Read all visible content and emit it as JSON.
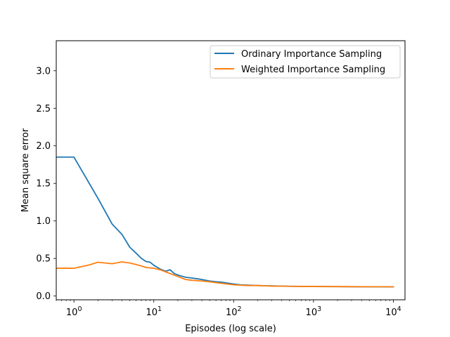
{
  "chart_data": {
    "type": "line",
    "title": "",
    "xlabel": "Episodes (log scale)",
    "ylabel": "Mean square error",
    "xscale": "log",
    "xlim": [
      0.6,
      14000
    ],
    "ylim": [
      -0.05,
      3.4
    ],
    "xticks": [
      1,
      10,
      100,
      1000,
      10000
    ],
    "xtick_labels": [
      {
        "base": "10",
        "exp": "0"
      },
      {
        "base": "10",
        "exp": "1"
      },
      {
        "base": "10",
        "exp": "2"
      },
      {
        "base": "10",
        "exp": "3"
      },
      {
        "base": "10",
        "exp": "4"
      }
    ],
    "yticks": [
      0.0,
      0.5,
      1.0,
      1.5,
      2.0,
      2.5,
      3.0
    ],
    "ytick_labels": [
      "0.0",
      "0.5",
      "1.0",
      "1.5",
      "2.0",
      "2.5",
      "3.0"
    ],
    "grid": false,
    "legend_position": "upper right",
    "series": [
      {
        "name": "Ordinary Importance Sampling",
        "color": "#1f77b4",
        "points": [
          [
            0.6,
            1.85
          ],
          [
            1,
            1.85
          ],
          [
            2,
            1.3
          ],
          [
            3,
            0.96
          ],
          [
            4,
            0.82
          ],
          [
            5,
            0.65
          ],
          [
            6,
            0.57
          ],
          [
            7,
            0.5
          ],
          [
            8,
            0.46
          ],
          [
            9,
            0.45
          ],
          [
            10,
            0.41
          ],
          [
            12,
            0.36
          ],
          [
            14,
            0.33
          ],
          [
            16,
            0.35
          ],
          [
            18,
            0.3
          ],
          [
            20,
            0.28
          ],
          [
            25,
            0.25
          ],
          [
            30,
            0.24
          ],
          [
            35,
            0.23
          ],
          [
            40,
            0.22
          ],
          [
            50,
            0.2
          ],
          [
            60,
            0.19
          ],
          [
            70,
            0.185
          ],
          [
            80,
            0.175
          ],
          [
            100,
            0.16
          ],
          [
            120,
            0.15
          ],
          [
            150,
            0.145
          ],
          [
            200,
            0.14
          ],
          [
            300,
            0.135
          ],
          [
            500,
            0.13
          ],
          [
            700,
            0.128
          ],
          [
            1000,
            0.127
          ],
          [
            2000,
            0.125
          ],
          [
            5000,
            0.123
          ],
          [
            10000,
            0.122
          ]
        ]
      },
      {
        "name": "Weighted Importance Sampling",
        "color": "#ff7f0e",
        "points": [
          [
            0.6,
            0.37
          ],
          [
            1,
            0.37
          ],
          [
            1.5,
            0.41
          ],
          [
            2,
            0.45
          ],
          [
            3,
            0.43
          ],
          [
            4,
            0.455
          ],
          [
            5,
            0.44
          ],
          [
            6,
            0.42
          ],
          [
            7,
            0.4
          ],
          [
            8,
            0.38
          ],
          [
            10,
            0.37
          ],
          [
            12,
            0.35
          ],
          [
            15,
            0.31
          ],
          [
            20,
            0.26
          ],
          [
            25,
            0.22
          ],
          [
            30,
            0.21
          ],
          [
            40,
            0.2
          ],
          [
            50,
            0.19
          ],
          [
            70,
            0.17
          ],
          [
            100,
            0.15
          ],
          [
            150,
            0.14
          ],
          [
            200,
            0.14
          ],
          [
            300,
            0.133
          ],
          [
            500,
            0.13
          ],
          [
            700,
            0.128
          ],
          [
            1000,
            0.127
          ],
          [
            2000,
            0.126
          ],
          [
            5000,
            0.124
          ],
          [
            10000,
            0.123
          ]
        ]
      }
    ]
  }
}
